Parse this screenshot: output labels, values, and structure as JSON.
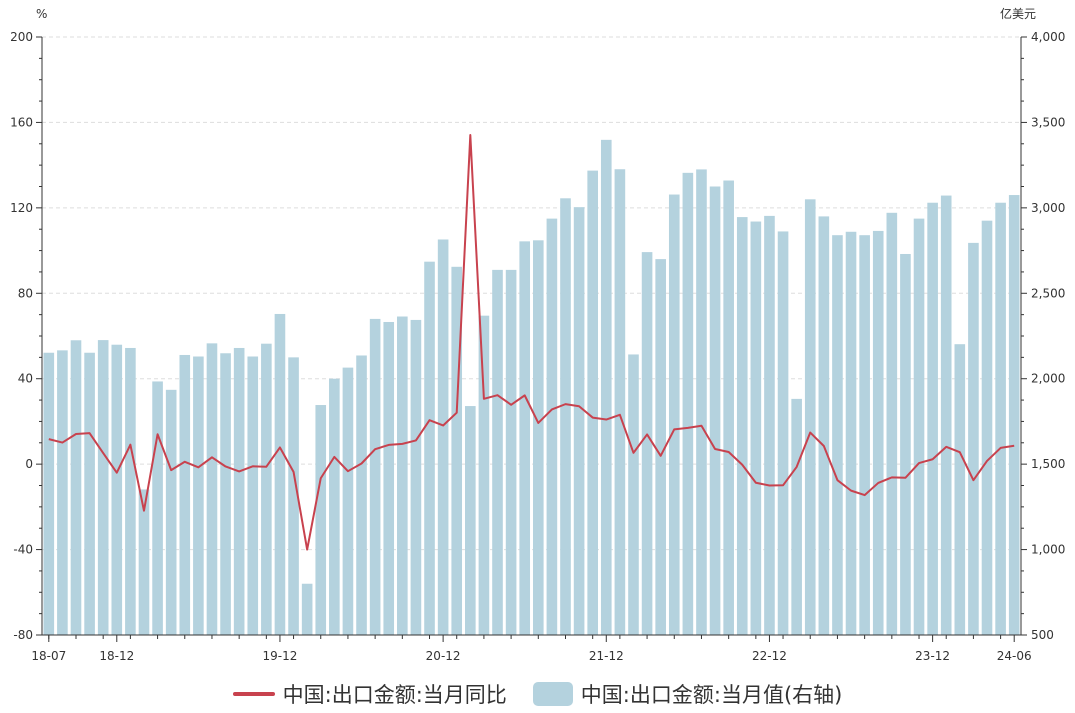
{
  "chart_data": {
    "type": "bar+line",
    "left_unit": "%",
    "right_unit": "亿美元",
    "y_left": {
      "min": -80,
      "max": 200,
      "ticks": [
        -80,
        -40,
        0,
        40,
        80,
        120,
        160,
        200
      ]
    },
    "y_right": {
      "min": 500,
      "max": 4000,
      "ticks": [
        500,
        1000,
        1500,
        2000,
        2500,
        3000,
        3500,
        4000
      ]
    },
    "tick_labels_left": [
      "-80",
      "-40",
      "0",
      "40",
      "80",
      "120",
      "160",
      "200"
    ],
    "tick_labels_right": [
      "500",
      "1,000",
      "1,500",
      "2,000",
      "2,500",
      "3,000",
      "3,500",
      "4,000"
    ],
    "x_tick_labels": [
      {
        "index": 0,
        "label": "18-07"
      },
      {
        "index": 5,
        "label": "18-12"
      },
      {
        "index": 17,
        "label": "19-12"
      },
      {
        "index": 29,
        "label": "20-12"
      },
      {
        "index": 41,
        "label": "21-12"
      },
      {
        "index": 53,
        "label": "22-12"
      },
      {
        "index": 65,
        "label": "23-12"
      },
      {
        "index": 71,
        "label": "24-06"
      }
    ],
    "categories": [
      "18-07",
      "18-08",
      "18-09",
      "18-10",
      "18-11",
      "18-12",
      "19-01",
      "19-02",
      "19-03",
      "19-04",
      "19-05",
      "19-06",
      "19-07",
      "19-08",
      "19-09",
      "19-10",
      "19-11",
      "19-12",
      "20-01",
      "20-02",
      "20-03",
      "20-04",
      "20-05",
      "20-06",
      "20-07",
      "20-08",
      "20-09",
      "20-10",
      "20-11",
      "20-12",
      "21-01",
      "21-02",
      "21-03",
      "21-04",
      "21-05",
      "21-06",
      "21-07",
      "21-08",
      "21-09",
      "21-10",
      "21-11",
      "21-12",
      "22-01",
      "22-02",
      "22-03",
      "22-04",
      "22-05",
      "22-06",
      "22-07",
      "22-08",
      "22-09",
      "22-10",
      "22-11",
      "22-12",
      "23-01",
      "23-02",
      "23-03",
      "23-04",
      "23-05",
      "23-06",
      "23-07",
      "23-08",
      "23-09",
      "23-10",
      "23-11",
      "23-12",
      "24-01",
      "24-02",
      "24-03",
      "24-04",
      "24-05",
      "24-06"
    ],
    "series": [
      {
        "name": "中国:出口金额:当月值(右轴)",
        "type": "bar",
        "axis": "right",
        "color": "#b4d2de",
        "values": [
          2152,
          2166,
          2225,
          2152,
          2226,
          2199,
          2180,
          1352,
          1984,
          1935,
          2139,
          2130,
          2207,
          2149,
          2180,
          2130,
          2205,
          2379,
          2125,
          800,
          1846,
          2000,
          2065,
          2136,
          2350,
          2332,
          2364,
          2344,
          2685,
          2815,
          2655,
          1840,
          2369,
          2637,
          2637,
          2804,
          2810,
          2937,
          3056,
          3004,
          3218,
          3398,
          3226,
          2142,
          2741,
          2700,
          3078,
          3205,
          3225,
          3125,
          3160,
          2946,
          2920,
          2953,
          2862,
          1882,
          3050,
          2950,
          2840,
          2860,
          2840,
          2865,
          2971,
          2730,
          2937,
          3030,
          3072,
          2202,
          2795,
          2925,
          3030,
          3075
        ]
      },
      {
        "name": "中国:出口金额:当月同比",
        "type": "line",
        "axis": "left",
        "color": "#c8424e",
        "values": [
          11.7,
          10.1,
          14.1,
          14.5,
          5.2,
          -4.0,
          9.1,
          -21.8,
          14.0,
          -2.8,
          1.1,
          -1.5,
          3.2,
          -1.1,
          -3.4,
          -1.0,
          -1.2,
          7.8,
          -3.6,
          -40.0,
          -6.6,
          3.4,
          -3.3,
          0.3,
          7.0,
          9.0,
          9.5,
          11.1,
          20.6,
          18.1,
          24.1,
          154.1,
          30.6,
          32.3,
          27.8,
          32.2,
          19.3,
          25.6,
          28.1,
          27.1,
          21.8,
          20.9,
          23.1,
          5.3,
          13.9,
          3.9,
          16.3,
          17.0,
          18.0,
          7.1,
          5.7,
          -0.3,
          -8.7,
          -10.0,
          -9.9,
          -1.3,
          14.8,
          8.5,
          -7.5,
          -12.4,
          -14.5,
          -8.8,
          -6.2,
          -6.4,
          0.5,
          2.3,
          8.1,
          5.6,
          -7.5,
          1.5,
          7.6,
          8.6
        ]
      }
    ],
    "legend": [
      {
        "label": "中国:出口金额:当月同比",
        "swatch": "line",
        "color": "#c8424e"
      },
      {
        "label": "中国:出口金额:当月值(右轴)",
        "swatch": "box",
        "color": "#b4d2de"
      }
    ],
    "grid": true,
    "legend_position": "bottom"
  }
}
